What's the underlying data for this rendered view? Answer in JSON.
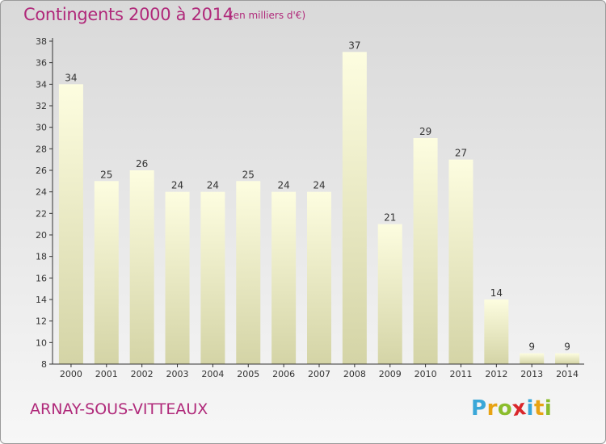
{
  "title": "Contingents 2000 à 2014",
  "subtitle": "(en milliers d'€)",
  "place": "ARNAY-SOUS-VITTEAUX",
  "logo": {
    "letters": [
      "P",
      "r",
      "o",
      "x",
      "i",
      "t",
      "i"
    ],
    "colors": [
      "#3aa7d8",
      "#e8a313",
      "#8bbd2d",
      "#d9262a",
      "#3aa7d8",
      "#e8a313",
      "#8bbd2d"
    ]
  },
  "colors": {
    "accent": "#b0297a",
    "bar_light": "#fbfbd6",
    "bar_dark": "#d6d6a8"
  },
  "chart_data": {
    "type": "bar",
    "title": "Contingents 2000 à 2014",
    "subtitle": "(en milliers d'€)",
    "categories": [
      "2000",
      "2001",
      "2002",
      "2003",
      "2004",
      "2005",
      "2006",
      "2007",
      "2008",
      "2009",
      "2010",
      "2011",
      "2012",
      "2013",
      "2014"
    ],
    "values": [
      34,
      25,
      26,
      24,
      24,
      25,
      24,
      24,
      37,
      21,
      29,
      27,
      14,
      9,
      9
    ],
    "ylim": [
      8,
      38
    ],
    "yticks": [
      8,
      10,
      12,
      14,
      16,
      18,
      20,
      22,
      24,
      26,
      28,
      30,
      32,
      34,
      36,
      38
    ],
    "grid": false,
    "legend": "none"
  }
}
